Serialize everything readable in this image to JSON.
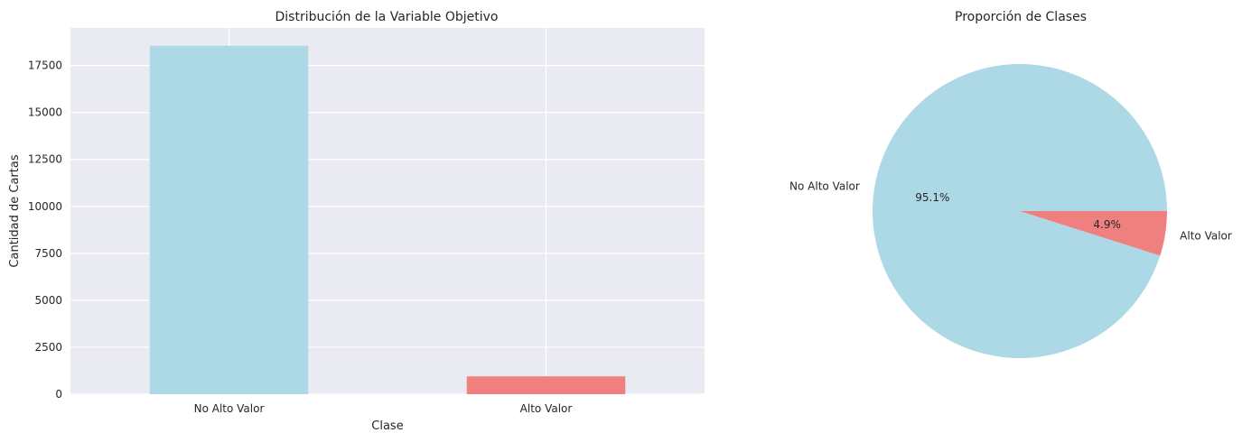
{
  "chart_data": [
    {
      "type": "bar",
      "title": "Distribución de la Variable Objetivo",
      "xlabel": "Clase",
      "ylabel": "Cantidad de Cartas",
      "categories": [
        "No Alto Valor",
        "Alto Valor"
      ],
      "values": [
        18550,
        950
      ],
      "colors": [
        "#add8e6",
        "#f08080"
      ],
      "ylim": [
        0,
        19500
      ],
      "yticks": [
        0,
        2500,
        5000,
        7500,
        10000,
        12500,
        15000,
        17500
      ],
      "ytick_labels": [
        "0",
        "2500",
        "5000",
        "7500",
        "10000",
        "12500",
        "15000",
        "17500"
      ],
      "grid": true,
      "background": "#eaeaf2"
    },
    {
      "type": "pie",
      "title": "Proporción de Clases",
      "labels": [
        "No Alto Valor",
        "Alto Valor"
      ],
      "values": [
        95.1,
        4.9
      ],
      "pct_labels": [
        "95.1%",
        "4.9%"
      ],
      "colors": [
        "#add8e6",
        "#f08080"
      ]
    }
  ]
}
